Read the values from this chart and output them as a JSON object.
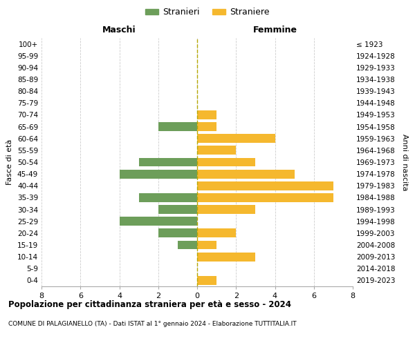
{
  "age_groups": [
    "100+",
    "95-99",
    "90-94",
    "85-89",
    "80-84",
    "75-79",
    "70-74",
    "65-69",
    "60-64",
    "55-59",
    "50-54",
    "45-49",
    "40-44",
    "35-39",
    "30-34",
    "25-29",
    "20-24",
    "15-19",
    "10-14",
    "5-9",
    "0-4"
  ],
  "birth_years": [
    "≤ 1923",
    "1924-1928",
    "1929-1933",
    "1934-1938",
    "1939-1943",
    "1944-1948",
    "1949-1953",
    "1954-1958",
    "1959-1963",
    "1964-1968",
    "1969-1973",
    "1974-1978",
    "1979-1983",
    "1984-1988",
    "1989-1993",
    "1994-1998",
    "1999-2003",
    "2004-2008",
    "2009-2013",
    "2014-2018",
    "2019-2023"
  ],
  "males": [
    0,
    0,
    0,
    0,
    0,
    0,
    0,
    2,
    0,
    0,
    3,
    4,
    0,
    3,
    2,
    4,
    2,
    1,
    0,
    0,
    0
  ],
  "females": [
    0,
    0,
    0,
    0,
    0,
    0,
    1,
    1,
    4,
    2,
    3,
    5,
    7,
    7,
    3,
    0,
    2,
    1,
    3,
    0,
    1
  ],
  "male_color": "#6d9e5a",
  "female_color": "#f5b82e",
  "background_color": "#ffffff",
  "grid_color": "#cccccc",
  "title": "Popolazione per cittadinanza straniera per età e sesso - 2024",
  "subtitle": "COMUNE DI PALAGIANELLO (TA) - Dati ISTAT al 1° gennaio 2024 - Elaborazione TUTTITALIA.IT",
  "xlabel_left": "Maschi",
  "xlabel_right": "Femmine",
  "ylabel_left": "Fasce di età",
  "ylabel_right": "Anni di nascita",
  "legend_male": "Stranieri",
  "legend_female": "Straniere",
  "xlim": 8,
  "bar_height": 0.75,
  "dashed_line_color": "#b5a800"
}
